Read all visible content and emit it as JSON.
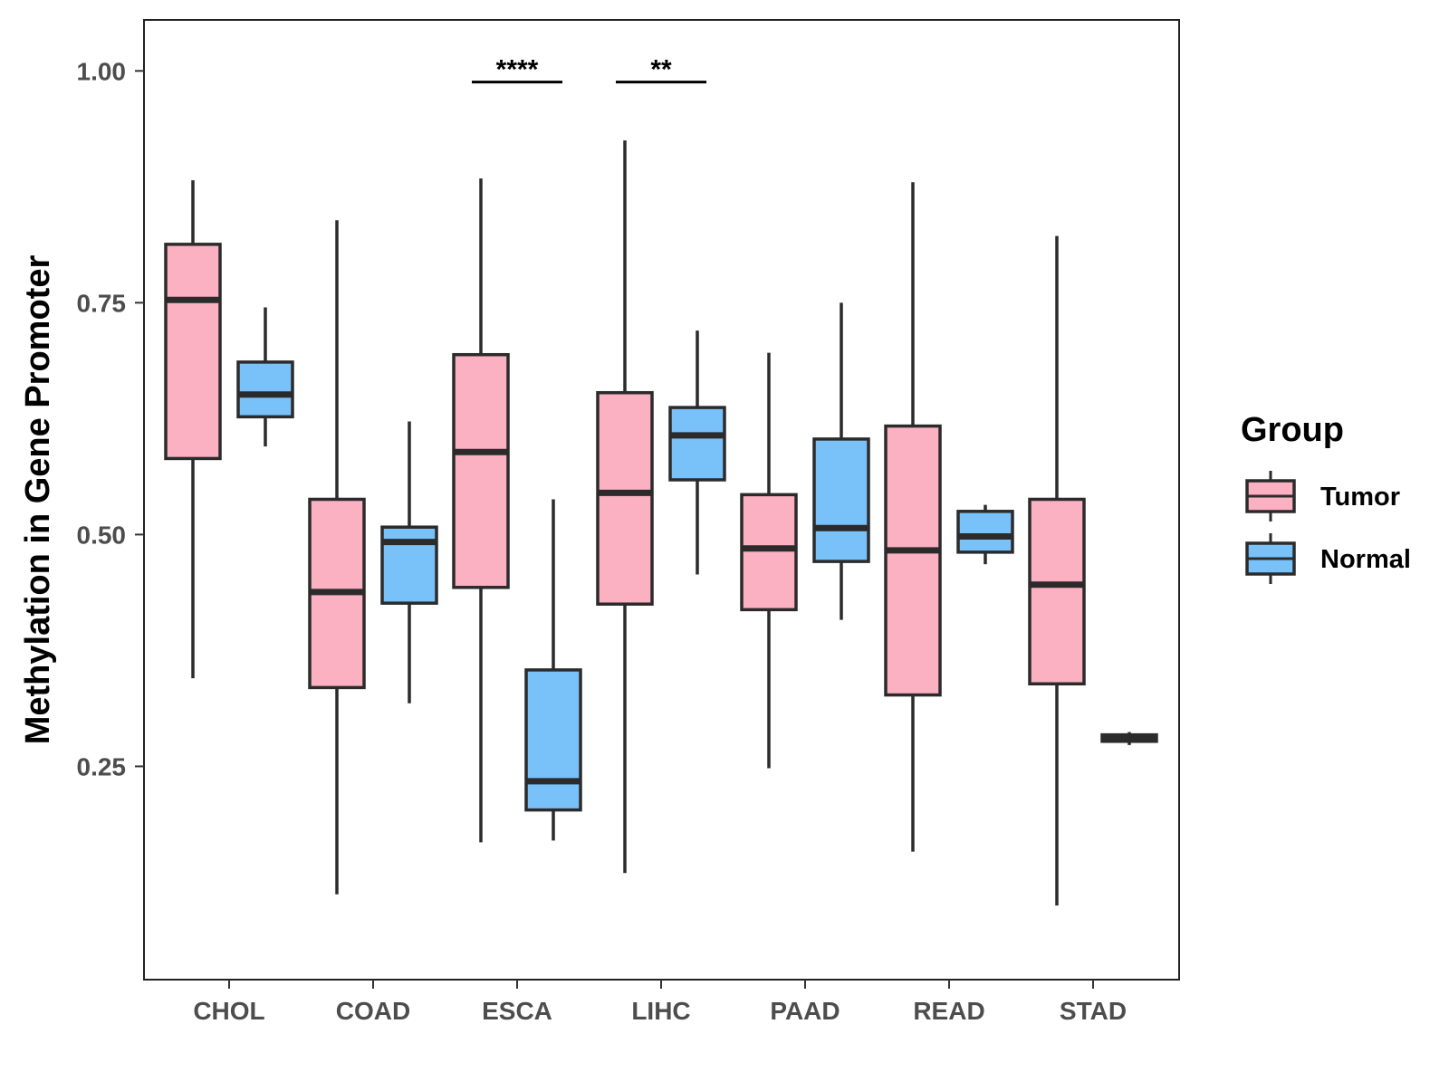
{
  "chart_data": {
    "type": "boxplot",
    "title": "",
    "xlabel": "",
    "ylabel": "Methylation in Gene Promoter",
    "ylim": [
      0.02,
      1.055
    ],
    "yticks": [
      0.25,
      0.5,
      0.75,
      1.0
    ],
    "ytick_labels": [
      "0.25",
      "0.50",
      "0.75",
      "1.00"
    ],
    "grid": false,
    "categories": [
      "CHOL",
      "COAD",
      "ESCA",
      "LIHC",
      "PAAD",
      "READ",
      "STAD"
    ],
    "legend": {
      "title": "Group",
      "position": "right",
      "entries": [
        {
          "name": "Tumor",
          "color": "#fbb1c2"
        },
        {
          "name": "Normal",
          "color": "#78c1f9"
        }
      ]
    },
    "series": [
      {
        "name": "Tumor",
        "color": "#fbb1c2",
        "boxes": [
          {
            "category": "CHOL",
            "min": 0.345,
            "q1": 0.582,
            "median": 0.753,
            "q3": 0.813,
            "max": 0.882
          },
          {
            "category": "COAD",
            "min": 0.112,
            "q1": 0.335,
            "median": 0.438,
            "q3": 0.538,
            "max": 0.839
          },
          {
            "category": "ESCA",
            "min": 0.168,
            "q1": 0.443,
            "median": 0.589,
            "q3": 0.694,
            "max": 0.884
          },
          {
            "category": "LIHC",
            "min": 0.135,
            "q1": 0.425,
            "median": 0.545,
            "q3": 0.653,
            "max": 0.925
          },
          {
            "category": "PAAD",
            "min": 0.248,
            "q1": 0.419,
            "median": 0.485,
            "q3": 0.543,
            "max": 0.696
          },
          {
            "category": "READ",
            "min": 0.158,
            "q1": 0.327,
            "median": 0.483,
            "q3": 0.617,
            "max": 0.88
          },
          {
            "category": "STAD",
            "min": 0.1,
            "q1": 0.339,
            "median": 0.446,
            "q3": 0.538,
            "max": 0.822
          }
        ]
      },
      {
        "name": "Normal",
        "color": "#78c1f9",
        "boxes": [
          {
            "category": "CHOL",
            "min": 0.595,
            "q1": 0.627,
            "median": 0.651,
            "q3": 0.686,
            "max": 0.745
          },
          {
            "category": "COAD",
            "min": 0.318,
            "q1": 0.426,
            "median": 0.492,
            "q3": 0.508,
            "max": 0.622
          },
          {
            "category": "ESCA",
            "min": 0.17,
            "q1": 0.203,
            "median": 0.234,
            "q3": 0.354,
            "max": 0.538
          },
          {
            "category": "LIHC",
            "min": 0.457,
            "q1": 0.559,
            "median": 0.607,
            "q3": 0.637,
            "max": 0.72
          },
          {
            "category": "PAAD",
            "min": 0.408,
            "q1": 0.471,
            "median": 0.507,
            "q3": 0.603,
            "max": 0.75
          },
          {
            "category": "READ",
            "min": 0.468,
            "q1": 0.481,
            "median": 0.498,
            "q3": 0.525,
            "max": 0.532
          },
          {
            "category": "STAD",
            "min": 0.273,
            "q1": 0.277,
            "median": 0.281,
            "q3": 0.284,
            "max": 0.287
          }
        ]
      }
    ],
    "annotations": [
      {
        "category": "ESCA",
        "label": "****",
        "y": 0.988
      },
      {
        "category": "LIHC",
        "label": "**",
        "y": 0.988
      }
    ]
  }
}
